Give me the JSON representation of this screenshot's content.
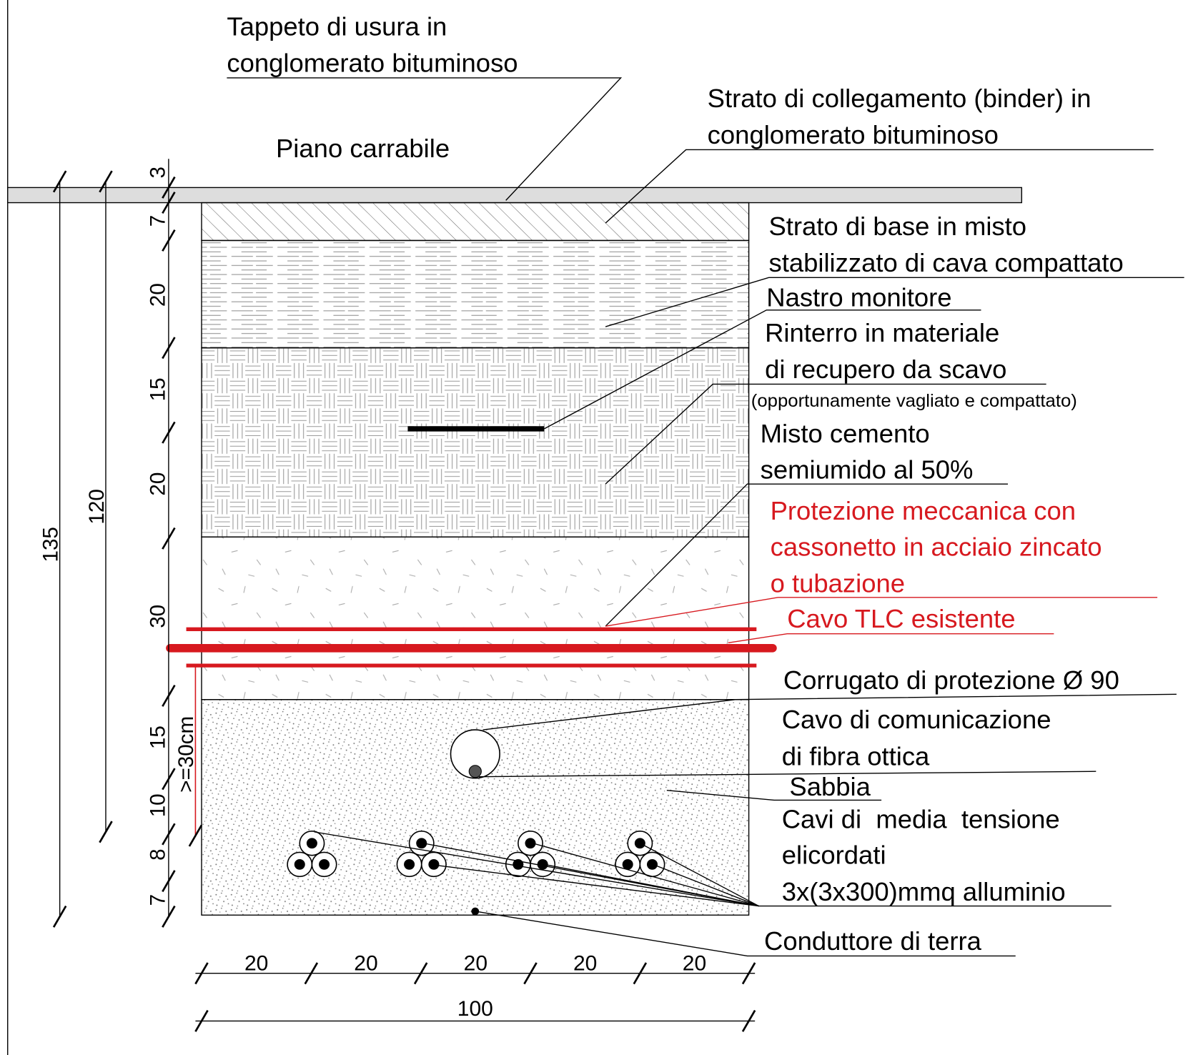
{
  "labels": {
    "wearing_course": [
      "Tappeto di usura in",
      "conglomerato bituminoso"
    ],
    "binder": [
      "Strato di collegamento (binder) in",
      "conglomerato bituminoso"
    ],
    "road_surface": "Piano carrabile",
    "base": [
      "Strato di base in misto",
      "stabilizzato di cava compattato"
    ],
    "warning_tape": "Nastro monitore",
    "backfill": [
      "Rinterro in materiale",
      "di recupero da scavo"
    ],
    "backfill_note": "(opportunamente vagliato e compattato)",
    "lean_concrete": [
      "Misto cemento",
      "semiumido al 50%"
    ],
    "protection": [
      "Protezione meccanica con",
      "cassonetto in acciaio zincato",
      "o tubazione"
    ],
    "existing_cable": "Cavo TLC esistente",
    "conduit": "Corrugato di protezione Ø 90",
    "fiber": [
      "Cavo di comunicazione",
      "di fibra ottica"
    ],
    "sand": "Sabbia",
    "mv_cables": [
      "Cavi di  media  tensione",
      "elicordati",
      "3x(3x300)mmq alluminio"
    ],
    "earth": "Conduttore di terra"
  },
  "dimensions": {
    "vertical": [
      3,
      7,
      20,
      15,
      20,
      30,
      15,
      10,
      8,
      7
    ],
    "totals": [
      135,
      120
    ],
    "horizontal": [
      20,
      20,
      20,
      20,
      20
    ],
    "width": 100,
    "clearance": ">=30cm"
  }
}
